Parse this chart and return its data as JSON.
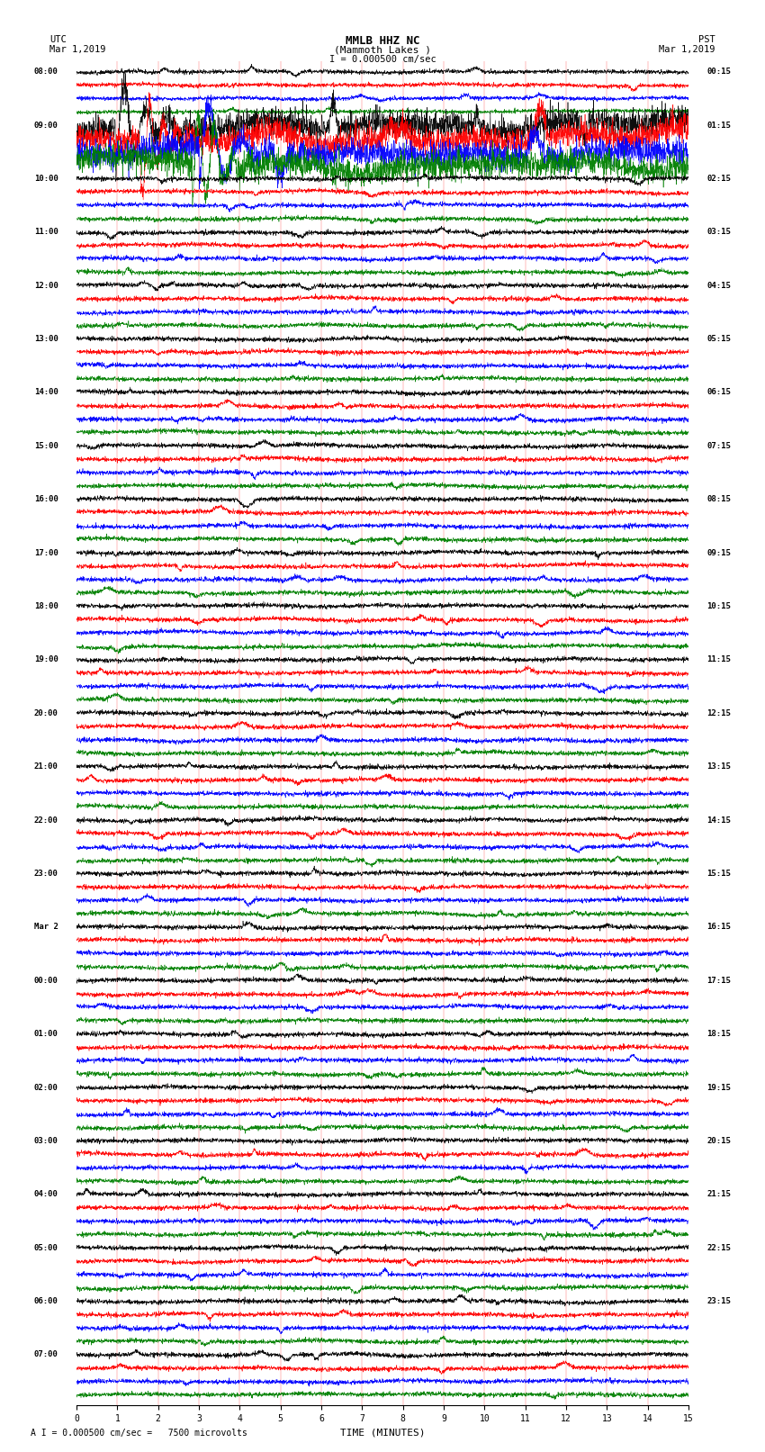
{
  "title_line1": "MMLB HHZ NC",
  "title_line2": "(Mammoth Lakes )",
  "scale_label": "I = 0.000500 cm/sec",
  "bottom_label": "A I = 0.000500 cm/sec =   7500 microvolts",
  "xlabel": "TIME (MINUTES)",
  "utc_label": "UTC",
  "utc_date": "Mar 1,2019",
  "pst_label": "PST",
  "pst_date": "Mar 1,2019",
  "left_times_utc": [
    "08:00",
    "09:00",
    "10:00",
    "11:00",
    "12:00",
    "13:00",
    "14:00",
    "15:00",
    "16:00",
    "17:00",
    "18:00",
    "19:00",
    "20:00",
    "21:00",
    "22:00",
    "23:00",
    "Mar 2",
    "00:00",
    "01:00",
    "02:00",
    "03:00",
    "04:00",
    "05:00",
    "06:00",
    "07:00"
  ],
  "right_times_pst": [
    "00:15",
    "01:15",
    "02:15",
    "03:15",
    "04:15",
    "05:15",
    "06:15",
    "07:15",
    "08:15",
    "09:15",
    "10:15",
    "11:15",
    "12:15",
    "13:15",
    "14:15",
    "15:15",
    "16:15",
    "17:15",
    "18:15",
    "19:15",
    "20:15",
    "21:15",
    "22:15",
    "23:15"
  ],
  "trace_colors": [
    "black",
    "red",
    "blue",
    "green"
  ],
  "n_hour_blocks": 25,
  "traces_per_block": 4,
  "time_min": 0,
  "time_max": 15,
  "background_color": "white",
  "trace_amplitude": 0.32,
  "noise_seed": 42
}
